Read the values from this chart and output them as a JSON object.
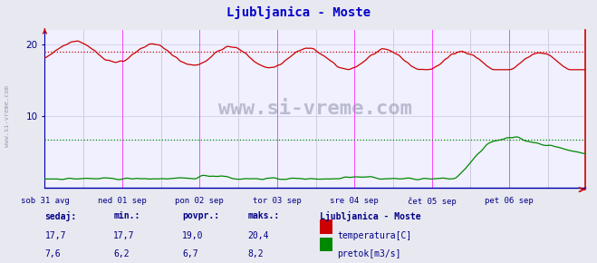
{
  "title": "Ljubljanica - Moste",
  "title_color": "#0000cc",
  "bg_color": "#e8e8f0",
  "plot_bg_color": "#f0f0ff",
  "grid_color_h": "#d0d0e8",
  "grid_color_v_minor": "#d8d8e8",
  "axis_color_bottom": "#0000aa",
  "axis_color_right": "#cc0000",
  "tick_label_color": "#000088",
  "temp_color": "#cc0000",
  "flow_color": "#008800",
  "temp_avg_line": 19.0,
  "flow_avg_line": 6.7,
  "ylim": [
    0,
    22
  ],
  "yticks": [
    10,
    20
  ],
  "n_points": 336,
  "days": [
    "sob 31 avg",
    "ned 01 sep",
    "pon 02 sep",
    "tor 03 sep",
    "sre 04 sep",
    "čet 05 sep",
    "pet 06 sep"
  ],
  "day_tick_positions": [
    0,
    48,
    96,
    144,
    192,
    240,
    288
  ],
  "watermark": "www.si-vreme.com",
  "info_label": "Ljubljanica - Moste",
  "sedaj_label": "sedaj:",
  "min_label": "min.:",
  "povpr_label": "povpr.:",
  "maks_label": "maks.:",
  "temp_sedaj": "17,7",
  "temp_min": "17,7",
  "temp_povpr": "19,0",
  "temp_maks": "20,4",
  "flow_sedaj": "7,6",
  "flow_min": "6,2",
  "flow_povpr": "6,7",
  "flow_maks": "8,2",
  "temp_legend": "temperatura[C]",
  "flow_legend": "pretok[m3/s]",
  "left_label": "www.si-vreme.com",
  "magenta_vlines": [
    48,
    96,
    144,
    192,
    240,
    288
  ],
  "dashed_vlines": [
    24,
    72,
    120,
    168,
    216,
    264,
    312
  ]
}
